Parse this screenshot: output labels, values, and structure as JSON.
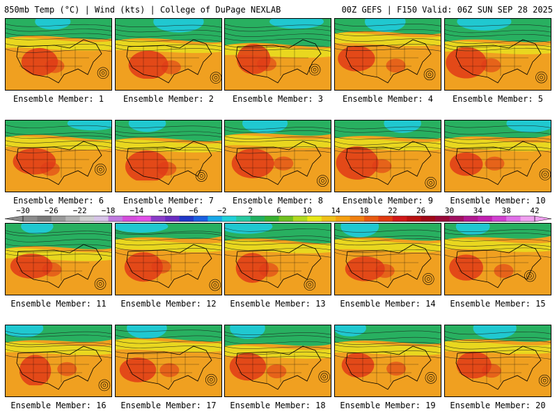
{
  "header": {
    "left": "850mb Temp (°C) | Wind (kts) | College of DuPage NEXLAB",
    "right": "00Z GEFS | F150 Valid: 06Z SUN SEP 28 2025"
  },
  "members": [
    "Ensemble Member: 1",
    "Ensemble Member: 2",
    "Ensemble Member: 3",
    "Ensemble Member: 4",
    "Ensemble Member: 5",
    "Ensemble Member: 6",
    "Ensemble Member: 7",
    "Ensemble Member: 8",
    "Ensemble Member: 9",
    "Ensemble Member: 10",
    "Ensemble Member: 11",
    "Ensemble Member: 12",
    "Ensemble Member: 13",
    "Ensemble Member: 14",
    "Ensemble Member: 15",
    "Ensemble Member: 16",
    "Ensemble Member: 17",
    "Ensemble Member: 18",
    "Ensemble Member: 19",
    "Ensemble Member: 20"
  ],
  "colorbar": {
    "ticks": [
      "−30",
      "−26",
      "−22",
      "−18",
      "−14",
      "−10",
      "−6",
      "−2",
      "2",
      "6",
      "10",
      "14",
      "18",
      "22",
      "26",
      "30",
      "34",
      "38",
      "42"
    ],
    "colors": [
      "#8c8c8c",
      "#7a7a7a",
      "#9a9a9a",
      "#b4b4b4",
      "#cfcfcf",
      "#d7c4e8",
      "#c07be0",
      "#d44ddc",
      "#e050e8",
      "#8a3cc8",
      "#6a2cc0",
      "#2038c8",
      "#1a60e0",
      "#18a8e8",
      "#20d0d8",
      "#28c8a0",
      "#20b060",
      "#38b030",
      "#70c020",
      "#b0d820",
      "#e8e818",
      "#f0c018",
      "#f5a010",
      "#f08010",
      "#e85a10",
      "#e03a10",
      "#d01818",
      "#b81010",
      "#a00818",
      "#980838",
      "#a01060",
      "#b01890",
      "#c020b0",
      "#d040d0",
      "#e070e8",
      "#f0a0f0"
    ]
  },
  "palette": {
    "warm": "#f0a020",
    "hot": "#e03a18",
    "mild": "#e8e020",
    "cool": "#28b060",
    "cold": "#20c8d0"
  }
}
